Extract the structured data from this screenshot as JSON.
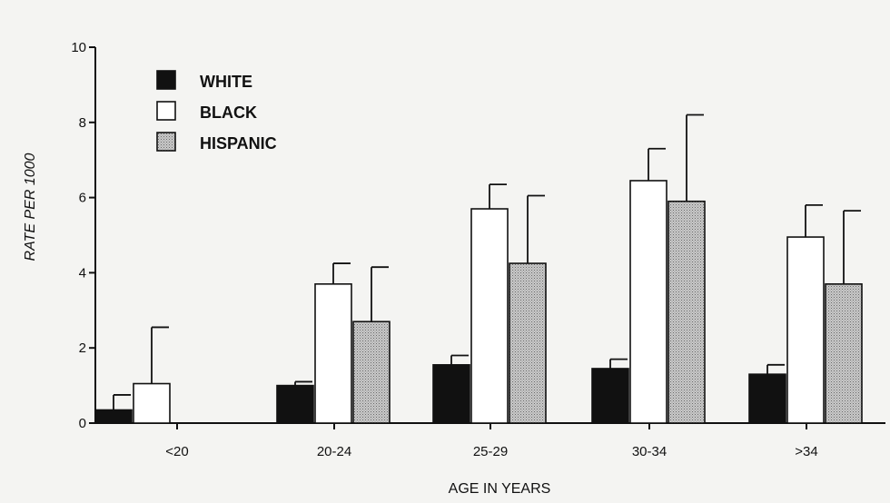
{
  "chart_data": {
    "type": "bar",
    "title": "",
    "xlabel": "AGE IN YEARS",
    "ylabel": "RATE PER 1000",
    "ylim": [
      0,
      10
    ],
    "yticks": [
      "0",
      "2",
      "4",
      "6",
      "8",
      "10"
    ],
    "categories": [
      "<20",
      "20-24",
      "25-29",
      "30-34",
      ">34"
    ],
    "series": [
      {
        "name": "WHITE",
        "color": "#111111",
        "values": [
          0.35,
          1.0,
          1.55,
          1.45,
          1.3
        ],
        "error_upper": [
          0.75,
          1.1,
          1.8,
          1.7,
          1.55
        ]
      },
      {
        "name": "BLACK",
        "color": "#ffffff",
        "values": [
          1.05,
          3.7,
          5.7,
          6.45,
          4.95
        ],
        "error_upper": [
          2.55,
          4.25,
          6.35,
          7.3,
          5.8
        ]
      },
      {
        "name": "HISPANIC",
        "color": "#bdbdbd",
        "values": [
          null,
          2.7,
          4.25,
          5.9,
          3.7
        ],
        "error_upper": [
          null,
          4.15,
          6.05,
          8.2,
          5.65
        ]
      }
    ],
    "legend_position": "top-left",
    "grid": false
  }
}
